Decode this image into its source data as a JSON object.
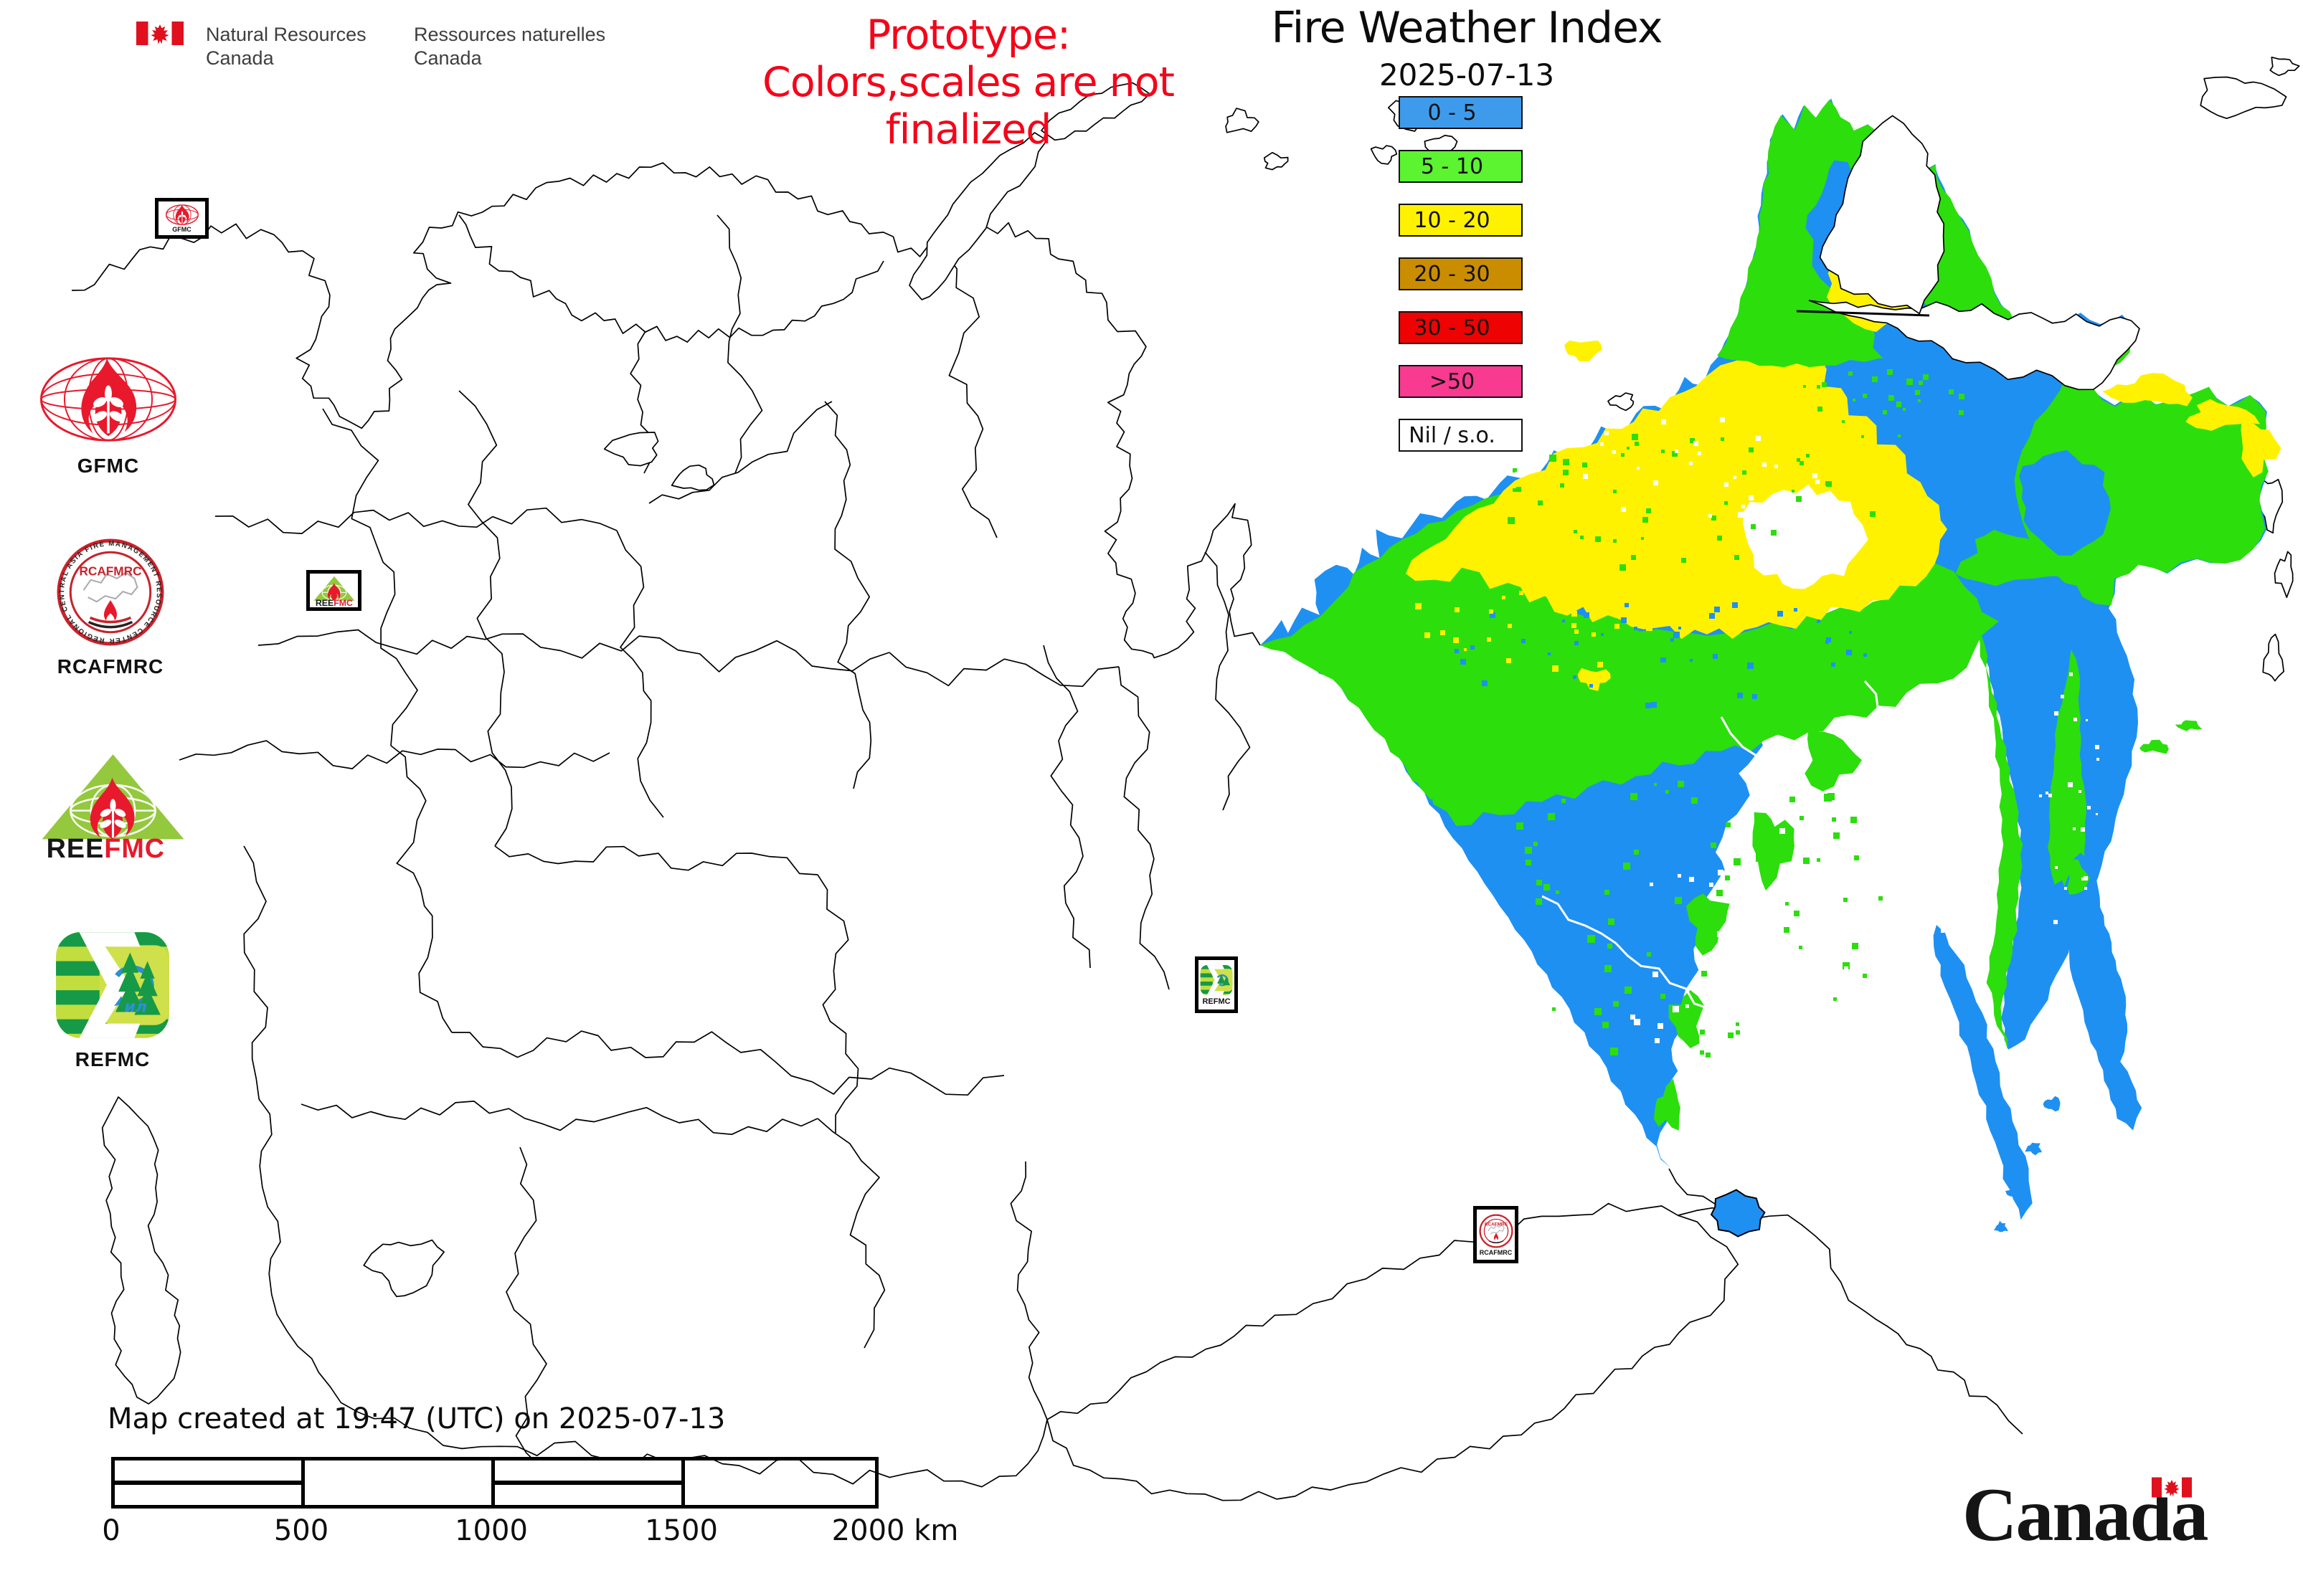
{
  "header": {
    "nrcan": {
      "line1_en": "Natural Resources",
      "line2_en": "Canada",
      "line1_fr": "Ressources naturelles",
      "line2_fr": "Canada"
    },
    "prototype_line1": "Prototype:",
    "prototype_line2": "Colors,scales are not finalized",
    "title": "Fire Weather Index",
    "date": "2025-07-13"
  },
  "legend": {
    "items": [
      {
        "label": "0 - 5",
        "color": "#3E9BEC"
      },
      {
        "label": "5 - 10",
        "color": "#5CF331"
      },
      {
        "label": "10 - 20",
        "color": "#FFF200"
      },
      {
        "label": "20 - 30",
        "color": "#CB8D00"
      },
      {
        "label": "30 - 50",
        "color": "#EE0202"
      },
      {
        "label": ">50",
        "color": "#F83A90"
      },
      {
        "label": "Nil / s.o.",
        "color": "#FFFFFF"
      }
    ]
  },
  "logos": {
    "gfmc": {
      "label": "GFMC"
    },
    "rcafmrc": {
      "label": "RCAFMRC",
      "ring_text": "REGIONAL CENTRAL ASIA FIRE MANAGEMENT RESOURCE CENTER",
      "badge": "RCAFMRC"
    },
    "reefmc": {
      "label_black": "REE",
      "label_red": "FMC"
    },
    "refmc": {
      "label": "REFMC",
      "inner": "ил"
    }
  },
  "markers": {
    "gfmc": "GFMC",
    "reefmc_black": "REE",
    "reefmc_red": "FMC",
    "refmc": "REFMC",
    "rcafmrc": "RCAFMRC"
  },
  "footer": {
    "caption": "Map created at 19:47 (UTC) on 2025-07-13",
    "scalebar": {
      "ticks": [
        "0",
        "500",
        "1000",
        "1500"
      ],
      "end_label": "2000 km"
    },
    "wordmark": "Canada"
  },
  "map": {
    "colors": {
      "fwi_low": "#1E90F2",
      "fwi_mid": "#2CDE0C",
      "fwi_high": "#FFF200",
      "nil": "#FFFFFF",
      "outline": "#000000"
    }
  }
}
